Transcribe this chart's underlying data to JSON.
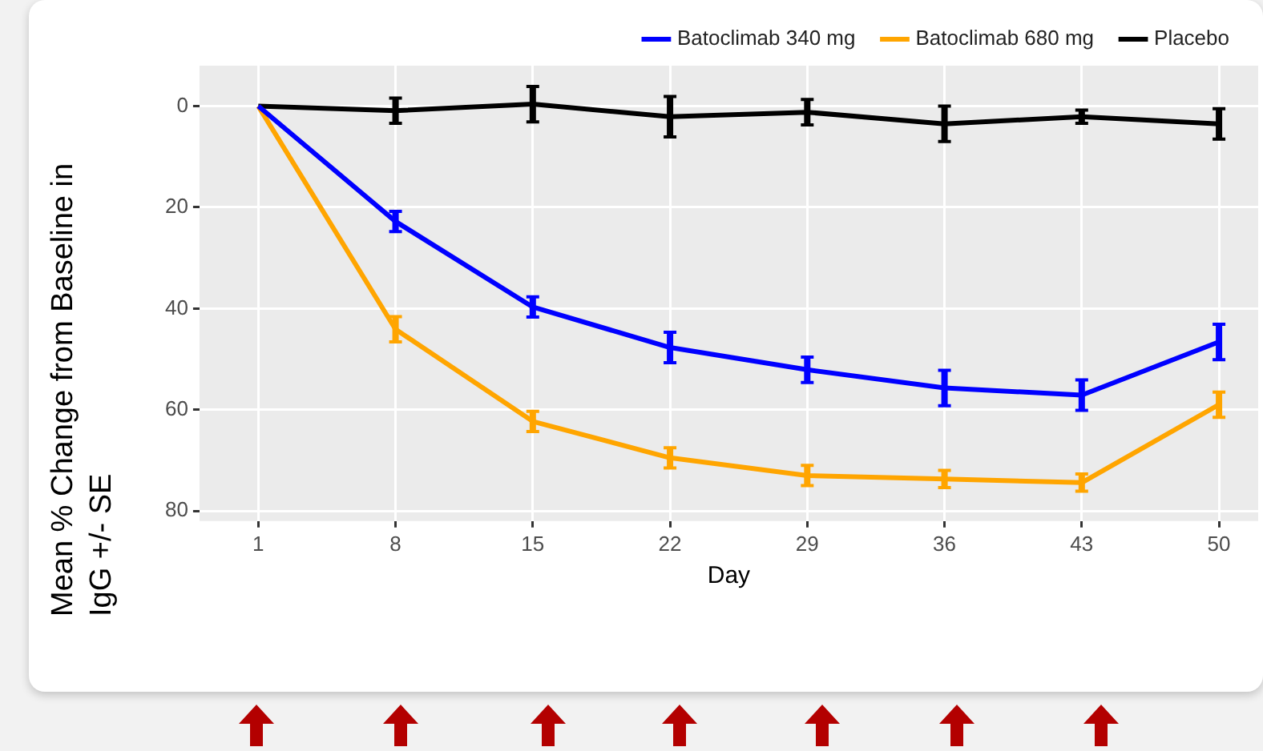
{
  "chart_data": {
    "type": "line",
    "xlabel": "Day",
    "ylabel": "Mean % Change from Baseline in IgG +/- SE",
    "x": [
      1,
      8,
      15,
      22,
      29,
      36,
      43,
      50
    ],
    "xlim": [
      -2,
      52
    ],
    "xticks": [
      1,
      8,
      15,
      22,
      29,
      36,
      43,
      50
    ],
    "ylim": [
      82,
      -8
    ],
    "yticks": [
      0,
      20,
      40,
      60,
      80
    ],
    "grid": true,
    "legend": "top right",
    "line_style": "solid",
    "series": [
      {
        "name": "Batoclimab 340 mg",
        "color": "#0000ff",
        "values": [
          0,
          22.8,
          39.7,
          47.7,
          52.1,
          55.7,
          57.1,
          46.6
        ],
        "errors": [
          null,
          2,
          2,
          3,
          2.5,
          3.5,
          3,
          3.5
        ]
      },
      {
        "name": "Batoclimab 680 mg",
        "color": "#ffa500",
        "values": [
          0,
          44.1,
          62.3,
          69.5,
          73.0,
          73.7,
          74.4,
          59.0
        ],
        "errors": [
          null,
          2.5,
          2,
          2,
          2,
          1.7,
          1.7,
          2.5
        ]
      },
      {
        "name": "Placebo",
        "color": "#000000",
        "values": [
          0,
          0.9,
          -0.4,
          2.1,
          1.2,
          3.5,
          2.1,
          3.5
        ],
        "errors": [
          null,
          2.5,
          3.5,
          4,
          2.5,
          3.5,
          1.3,
          3
        ]
      }
    ]
  }
}
